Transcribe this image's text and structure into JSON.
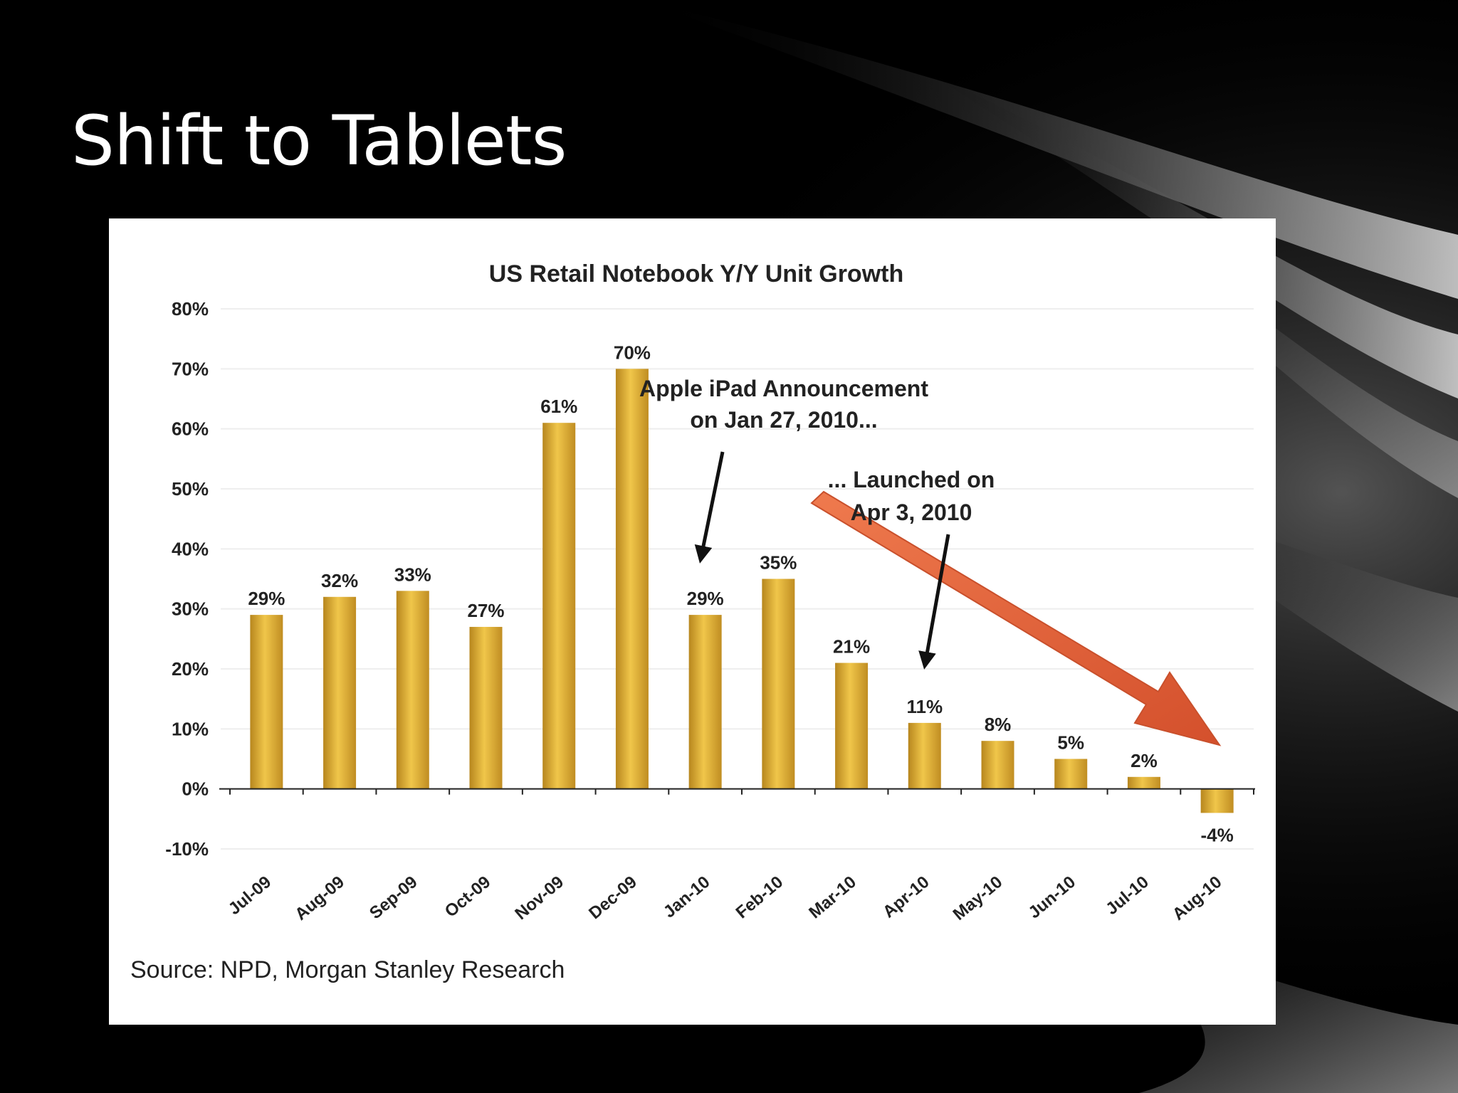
{
  "slide": {
    "title": "Shift to Tablets"
  },
  "chart_data": {
    "type": "bar",
    "title": "US Retail Notebook Y/Y Unit Growth",
    "xlabel": "",
    "ylabel": "",
    "categories": [
      "Jul-09",
      "Aug-09",
      "Sep-09",
      "Oct-09",
      "Nov-09",
      "Dec-09",
      "Jan-10",
      "Feb-10",
      "Mar-10",
      "Apr-10",
      "May-10",
      "Jun-10",
      "Jul-10",
      "Aug-10"
    ],
    "values": [
      29,
      32,
      33,
      27,
      61,
      70,
      29,
      35,
      21,
      11,
      8,
      5,
      2,
      -4
    ],
    "value_labels": [
      "29%",
      "32%",
      "33%",
      "27%",
      "61%",
      "70%",
      "29%",
      "35%",
      "21%",
      "11%",
      "8%",
      "5%",
      "2%",
      "-4%"
    ],
    "ylim": [
      -10,
      80
    ],
    "y_ticks": [
      -10,
      0,
      10,
      20,
      30,
      40,
      50,
      60,
      70,
      80
    ],
    "y_tick_labels": [
      "-10%",
      "0%",
      "10%",
      "20%",
      "30%",
      "40%",
      "50%",
      "60%",
      "70%",
      "80%"
    ],
    "grid": true,
    "legend": "none",
    "bar_color": "#d9a62e",
    "annotations": [
      {
        "name": "ipad-announcement",
        "lines": [
          "Apple iPad Announcement",
          "on Jan 27, 2010..."
        ],
        "points_to": "Jan-10"
      },
      {
        "name": "ipad-launch",
        "lines": [
          "... Launched on",
          "Apr 3, 2010"
        ],
        "points_to": "Apr-10"
      }
    ],
    "trend_arrow": {
      "from": "Feb-10",
      "to": "Aug-10",
      "color": "#e8643e"
    },
    "source": "Source: NPD, Morgan Stanley Research"
  }
}
